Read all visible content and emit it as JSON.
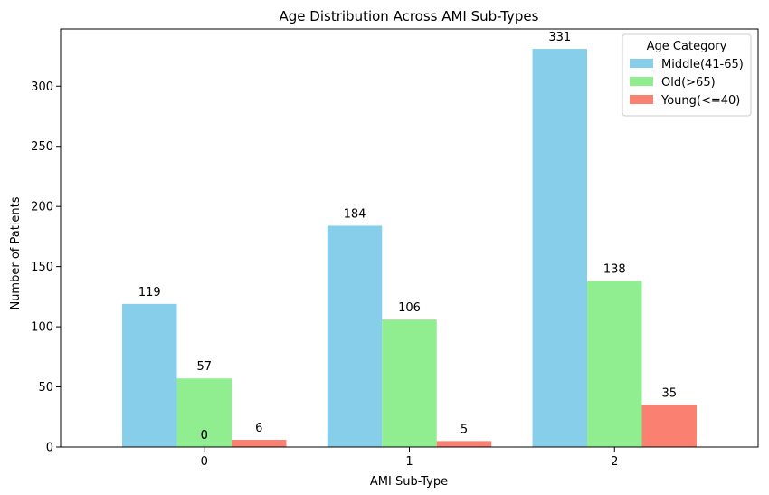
{
  "chart_data": {
    "type": "bar",
    "title": "Age Distribution Across AMI Sub-Types",
    "xlabel": "AMI Sub-Type",
    "ylabel": "Number of Patients",
    "categories": [
      "0",
      "1",
      "2"
    ],
    "series": [
      {
        "name": "Middle(41-65)",
        "values": [
          119,
          184,
          331
        ],
        "color": "#87ceeb"
      },
      {
        "name": "Old(>65)",
        "values": [
          57,
          106,
          138
        ],
        "color": "#90ee90"
      },
      {
        "name": "Young(<=40)",
        "values": [
          6,
          5,
          35
        ],
        "color": "#fa8072"
      }
    ],
    "extra_labels": [
      "0",
      "0"
    ],
    "ylim": [
      0,
      347.6
    ],
    "yticks": [
      0,
      50,
      100,
      150,
      200,
      250,
      300
    ],
    "grid": false,
    "legend": {
      "title": "Age Category",
      "placement": "top-right"
    }
  }
}
